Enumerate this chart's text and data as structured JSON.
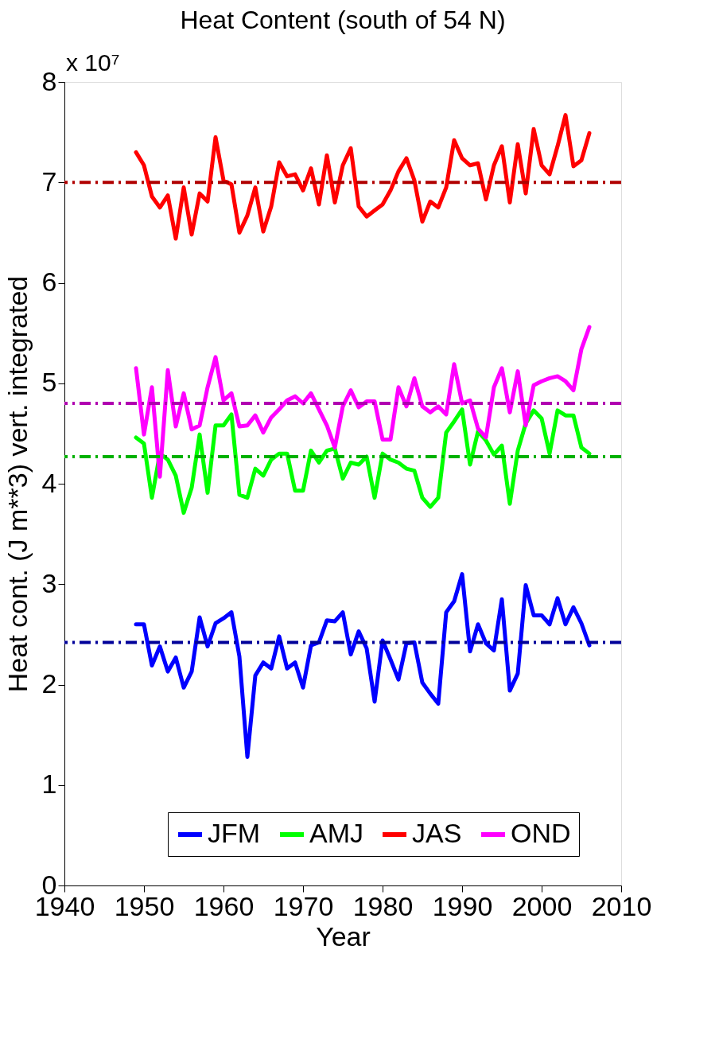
{
  "chart_data": {
    "type": "line",
    "title": "Heat Content (south of 54 N)",
    "xlabel": "Year",
    "ylabel": "Heat cont. (J m**3) vert. integrated",
    "annotations": [
      "x 10⁷"
    ],
    "x": [
      1949,
      1950,
      1951,
      1952,
      1953,
      1954,
      1955,
      1956,
      1957,
      1958,
      1959,
      1960,
      1961,
      1962,
      1963,
      1964,
      1965,
      1966,
      1967,
      1968,
      1969,
      1970,
      1971,
      1972,
      1973,
      1974,
      1975,
      1976,
      1977,
      1978,
      1979,
      1980,
      1981,
      1982,
      1983,
      1984,
      1985,
      1986,
      1987,
      1988,
      1989,
      1990,
      1991,
      1992,
      1993,
      1994,
      1995,
      1996,
      1997,
      1998,
      1999,
      2000,
      2001,
      2002,
      2003,
      2004,
      2005,
      2006
    ],
    "series": [
      {
        "name": "JFM",
        "color": "#0000ff",
        "values": [
          2.6,
          2.6,
          2.19,
          2.38,
          2.13,
          2.27,
          1.97,
          2.13,
          2.67,
          2.38,
          2.61,
          2.66,
          2.72,
          2.28,
          1.28,
          2.09,
          2.22,
          2.16,
          2.48,
          2.16,
          2.22,
          1.97,
          2.39,
          2.42,
          2.64,
          2.63,
          2.72,
          2.3,
          2.53,
          2.36,
          1.83,
          2.44,
          2.25,
          2.05,
          2.41,
          2.42,
          2.02,
          1.91,
          1.81,
          2.72,
          2.83,
          3.1,
          2.33,
          2.6,
          2.41,
          2.34,
          2.85,
          1.94,
          2.11,
          2.99,
          2.69,
          2.69,
          2.6,
          2.86,
          2.6,
          2.77,
          2.61,
          2.39
        ]
      },
      {
        "name": "AMJ",
        "color": "#00ff00",
        "values": [
          4.46,
          4.4,
          3.86,
          4.3,
          4.24,
          4.08,
          3.71,
          3.96,
          4.49,
          3.91,
          4.58,
          4.58,
          4.69,
          3.89,
          3.86,
          4.15,
          4.08,
          4.24,
          4.3,
          4.3,
          3.93,
          3.93,
          4.33,
          4.21,
          4.33,
          4.35,
          4.05,
          4.21,
          4.19,
          4.27,
          3.86,
          4.3,
          4.24,
          4.21,
          4.15,
          4.13,
          3.86,
          3.77,
          3.86,
          4.51,
          4.62,
          4.74,
          4.19,
          4.52,
          4.43,
          4.29,
          4.38,
          3.8,
          4.33,
          4.6,
          4.73,
          4.65,
          4.3,
          4.73,
          4.68,
          4.68,
          4.36,
          4.3
        ]
      },
      {
        "name": "JAS",
        "color": "#ff0000",
        "values": [
          7.3,
          7.17,
          6.86,
          6.75,
          6.87,
          6.44,
          6.95,
          6.48,
          6.89,
          6.81,
          7.45,
          7.02,
          6.98,
          6.5,
          6.67,
          6.95,
          6.51,
          6.76,
          7.2,
          7.06,
          7.08,
          6.92,
          7.14,
          6.78,
          7.27,
          6.8,
          7.17,
          7.34,
          6.76,
          6.66,
          6.72,
          6.78,
          6.92,
          7.11,
          7.24,
          7.02,
          6.61,
          6.81,
          6.75,
          6.95,
          7.42,
          7.24,
          7.17,
          7.19,
          6.83,
          7.17,
          7.36,
          6.8,
          7.38,
          6.89,
          7.53,
          7.17,
          7.08,
          7.36,
          7.67,
          7.16,
          7.22,
          7.49
        ]
      },
      {
        "name": "OND",
        "color": "#ff00ff",
        "values": [
          5.15,
          4.49,
          4.96,
          4.07,
          5.13,
          4.57,
          4.9,
          4.54,
          4.58,
          4.96,
          5.26,
          4.83,
          4.9,
          4.57,
          4.58,
          4.68,
          4.51,
          4.66,
          4.74,
          4.83,
          4.87,
          4.8,
          4.9,
          4.74,
          4.58,
          4.36,
          4.77,
          4.93,
          4.76,
          4.82,
          4.82,
          4.44,
          4.44,
          4.96,
          4.77,
          5.05,
          4.77,
          4.71,
          4.77,
          4.69,
          5.19,
          4.8,
          4.83,
          4.55,
          4.46,
          4.96,
          5.15,
          4.71,
          5.12,
          4.58,
          4.98,
          5.02,
          5.05,
          5.07,
          5.02,
          4.93,
          5.34,
          5.56
        ]
      }
    ],
    "ref_lines": [
      {
        "axis": "y",
        "value": 2.42,
        "color": "#000099",
        "line_style": "dashed"
      },
      {
        "axis": "y",
        "value": 4.27,
        "color": "#00b000",
        "line_style": "dashed"
      },
      {
        "axis": "y",
        "value": 7.0,
        "color": "#b00000",
        "line_style": "dashed"
      },
      {
        "axis": "y",
        "value": 4.8,
        "color": "#b000b0",
        "line_style": "dashed"
      }
    ],
    "xlim": [
      1940,
      2010
    ],
    "xticks": [
      1940,
      1950,
      1960,
      1970,
      1980,
      1990,
      2000,
      2010
    ],
    "ylim": [
      0,
      8
    ],
    "yticks": [
      0,
      1,
      2,
      3,
      4,
      5,
      6,
      7,
      8
    ],
    "grid": false,
    "legend": "bottom",
    "marker": "none",
    "line_style": "solid"
  }
}
